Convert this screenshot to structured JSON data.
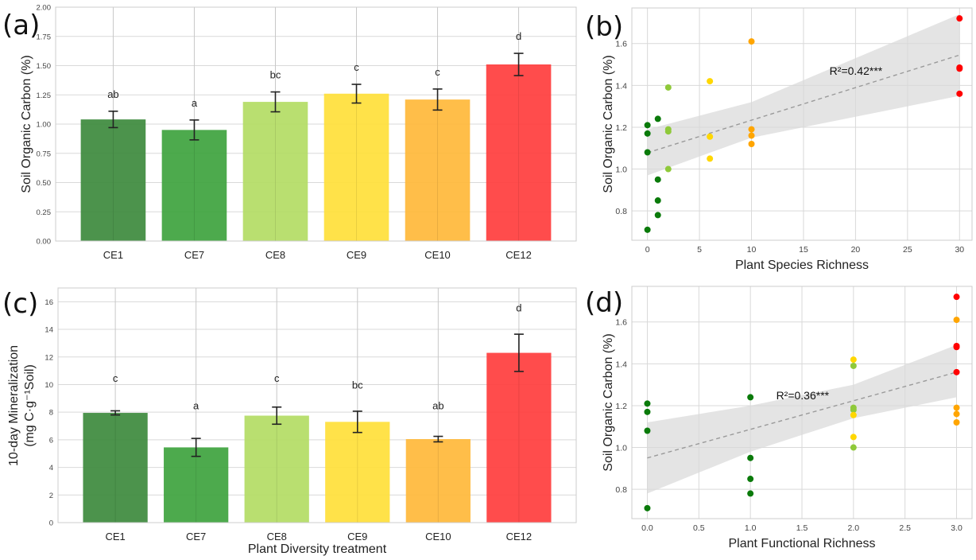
{
  "figure": {
    "panel_labels": [
      "(a)",
      "(b)",
      "(c)",
      "(d)"
    ]
  },
  "chart_data": [
    {
      "panel": "(a)",
      "type": "bar",
      "title": "",
      "xlabel": "",
      "ylabel": "Soil Organic Carbon (%)",
      "ylim": [
        0,
        2.0
      ],
      "yticks": [
        0.0,
        0.25,
        0.5,
        0.75,
        1.0,
        1.25,
        1.5,
        1.75,
        2.0
      ],
      "ytick_labels": [
        "0.00",
        "0.25",
        "0.50",
        "0.75",
        "1.00",
        "1.25",
        "1.50",
        "1.75",
        "2.00"
      ],
      "categories": [
        "CE1",
        "CE7",
        "CE8",
        "CE9",
        "CE10",
        "CE12"
      ],
      "values": [
        1.04,
        0.95,
        1.19,
        1.26,
        1.21,
        1.51
      ],
      "errors": [
        0.07,
        0.085,
        0.085,
        0.08,
        0.09,
        0.095
      ],
      "letters": [
        "ab",
        "a",
        "bc",
        "c",
        "c",
        "d"
      ],
      "colors": [
        "#3d8a3d",
        "#3ea33e",
        "#b3dc64",
        "#ffe03a",
        "#ffb83a",
        "#ff3d3d"
      ],
      "grid": true
    },
    {
      "panel": "(b)",
      "type": "scatter",
      "title": "",
      "xlabel": "Plant Species Richness",
      "ylabel": "Soil Organic Carbon (%)",
      "xlim": [
        -1.5,
        31.2
      ],
      "ylim": [
        0.66,
        1.77
      ],
      "xticks": [
        0,
        5,
        10,
        15,
        20,
        25,
        30
      ],
      "xtick_labels": [
        "0",
        "5",
        "10",
        "15",
        "20",
        "25",
        "30"
      ],
      "yticks": [
        0.8,
        1.0,
        1.2,
        1.4,
        1.6
      ],
      "ytick_labels": [
        "0.8",
        "1.0",
        "1.2",
        "1.4",
        "1.6"
      ],
      "points": [
        {
          "x": 0,
          "y": 1.21,
          "group": "CE1"
        },
        {
          "x": 0,
          "y": 1.17,
          "group": "CE1"
        },
        {
          "x": 0,
          "y": 1.08,
          "group": "CE1"
        },
        {
          "x": 0,
          "y": 0.71,
          "group": "CE1"
        },
        {
          "x": 1,
          "y": 1.24,
          "group": "CE7"
        },
        {
          "x": 1,
          "y": 0.95,
          "group": "CE7"
        },
        {
          "x": 1,
          "y": 0.85,
          "group": "CE7"
        },
        {
          "x": 1,
          "y": 0.78,
          "group": "CE7"
        },
        {
          "x": 2,
          "y": 1.39,
          "group": "CE8"
        },
        {
          "x": 2,
          "y": 1.19,
          "group": "CE8"
        },
        {
          "x": 2,
          "y": 1.18,
          "group": "CE8"
        },
        {
          "x": 2,
          "y": 1.0,
          "group": "CE8"
        },
        {
          "x": 6,
          "y": 1.42,
          "group": "CE9"
        },
        {
          "x": 6,
          "y": 1.155,
          "group": "CE9"
        },
        {
          "x": 6,
          "y": 1.05,
          "group": "CE9"
        },
        {
          "x": 10,
          "y": 1.61,
          "group": "CE10"
        },
        {
          "x": 10,
          "y": 1.19,
          "group": "CE10"
        },
        {
          "x": 10,
          "y": 1.16,
          "group": "CE10"
        },
        {
          "x": 10,
          "y": 1.12,
          "group": "CE10"
        },
        {
          "x": 30,
          "y": 1.72,
          "group": "CE12"
        },
        {
          "x": 30,
          "y": 1.485,
          "group": "CE12"
        },
        {
          "x": 30,
          "y": 1.48,
          "group": "CE12"
        },
        {
          "x": 30,
          "y": 1.36,
          "group": "CE12"
        }
      ],
      "group_colors": {
        "CE1": "#0a7a0a",
        "CE7": "#0a7a0a",
        "CE8": "#8fc93a",
        "CE9": "#ffd700",
        "CE10": "#ffa500",
        "CE12": "#ff0000"
      },
      "regression": {
        "x": [
          0,
          30
        ],
        "y": [
          1.078,
          1.545
        ],
        "ci_upper": [
          1.19,
          1.74
        ],
        "ci_lower": [
          0.97,
          1.35
        ],
        "ci_upper_mid": [
          {
            "x": 10,
            "y": 1.32
          }
        ],
        "ci_lower_mid": [
          {
            "x": 10,
            "y": 1.15
          }
        ]
      },
      "annotation": {
        "text": "R²=0.42***",
        "x": 17.5,
        "y": 1.45
      },
      "grid": true
    },
    {
      "panel": "(c)",
      "type": "bar",
      "title": "",
      "xlabel": "Plant Diversity treatment",
      "ylabel": "10-day Mineralization",
      "ylabel_line2": "(mg C·g⁻¹Soil)",
      "ylim": [
        0,
        17
      ],
      "yticks": [
        0,
        2,
        4,
        6,
        8,
        10,
        12,
        14,
        16
      ],
      "ytick_labels": [
        "0",
        "2",
        "4",
        "6",
        "8",
        "10",
        "12",
        "14",
        "16"
      ],
      "categories": [
        "CE1",
        "CE7",
        "CE8",
        "CE9",
        "CE10",
        "CE12"
      ],
      "values": [
        7.95,
        5.45,
        7.75,
        7.3,
        6.05,
        12.3
      ],
      "errors": [
        0.15,
        0.65,
        0.62,
        0.77,
        0.2,
        1.35
      ],
      "letters": [
        "c",
        "a",
        "c",
        "bc",
        "ab",
        "d"
      ],
      "letter_y": [
        10.2,
        8.2,
        10.2,
        9.7,
        8.2,
        15.3
      ],
      "colors": [
        "#3d8a3d",
        "#3ea33e",
        "#b3dc64",
        "#ffe03a",
        "#ffb83a",
        "#ff3d3d"
      ],
      "grid": true
    },
    {
      "panel": "(d)",
      "type": "scatter",
      "title": "",
      "xlabel": "Plant Functional Richness",
      "ylabel": "Soil Organic Carbon (%)",
      "xlim": [
        -0.15,
        3.15
      ],
      "ylim": [
        0.66,
        1.77
      ],
      "xticks": [
        0.0,
        0.5,
        1.0,
        1.5,
        2.0,
        2.5,
        3.0
      ],
      "xtick_labels": [
        "0.0",
        "0.5",
        "1.0",
        "1.5",
        "2.0",
        "2.5",
        "3.0"
      ],
      "yticks": [
        0.8,
        1.0,
        1.2,
        1.4,
        1.6
      ],
      "ytick_labels": [
        "0.8",
        "1.0",
        "1.2",
        "1.4",
        "1.6"
      ],
      "points": [
        {
          "x": 0,
          "y": 1.21,
          "group": "CE1"
        },
        {
          "x": 0,
          "y": 1.17,
          "group": "CE1"
        },
        {
          "x": 0,
          "y": 1.08,
          "group": "CE1"
        },
        {
          "x": 0,
          "y": 0.71,
          "group": "CE1"
        },
        {
          "x": 1,
          "y": 1.24,
          "group": "CE7"
        },
        {
          "x": 1,
          "y": 0.95,
          "group": "CE7"
        },
        {
          "x": 1,
          "y": 0.85,
          "group": "CE7"
        },
        {
          "x": 1,
          "y": 0.78,
          "group": "CE7"
        },
        {
          "x": 2,
          "y": 1.42,
          "group": "CE9"
        },
        {
          "x": 2,
          "y": 1.39,
          "group": "CE8"
        },
        {
          "x": 2,
          "y": 1.19,
          "group": "CE8"
        },
        {
          "x": 2,
          "y": 1.18,
          "group": "CE8"
        },
        {
          "x": 2,
          "y": 1.155,
          "group": "CE9"
        },
        {
          "x": 2,
          "y": 1.05,
          "group": "CE9"
        },
        {
          "x": 2,
          "y": 1.0,
          "group": "CE8"
        },
        {
          "x": 3,
          "y": 1.72,
          "group": "CE12"
        },
        {
          "x": 3,
          "y": 1.61,
          "group": "CE10"
        },
        {
          "x": 3,
          "y": 1.485,
          "group": "CE12"
        },
        {
          "x": 3,
          "y": 1.48,
          "group": "CE12"
        },
        {
          "x": 3,
          "y": 1.36,
          "group": "CE12"
        },
        {
          "x": 3,
          "y": 1.19,
          "group": "CE10"
        },
        {
          "x": 3,
          "y": 1.16,
          "group": "CE10"
        },
        {
          "x": 3,
          "y": 1.12,
          "group": "CE10"
        }
      ],
      "group_colors": {
        "CE1": "#0a7a0a",
        "CE7": "#0a7a0a",
        "CE8": "#8fc93a",
        "CE9": "#ffd700",
        "CE10": "#ffa500",
        "CE12": "#ff0000"
      },
      "regression": {
        "x": [
          0,
          3
        ],
        "y": [
          0.95,
          1.36
        ],
        "ci_upper": [
          1.12,
          1.49
        ],
        "ci_lower": [
          0.78,
          1.24
        ],
        "ci_upper_mid": [
          {
            "x": 1,
            "y": 1.2
          },
          {
            "x": 2,
            "y": 1.3
          }
        ],
        "ci_lower_mid": [
          {
            "x": 1,
            "y": 0.98
          },
          {
            "x": 2,
            "y": 1.14
          }
        ]
      },
      "annotation": {
        "text": "R²=0.36***",
        "x": 1.25,
        "y": 1.23
      },
      "grid": true
    }
  ]
}
